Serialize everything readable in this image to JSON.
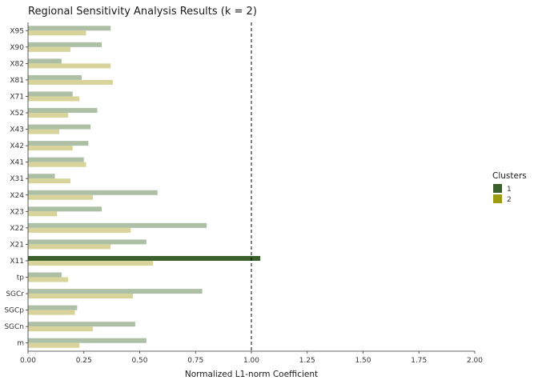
{
  "chart_data": {
    "type": "bar",
    "orientation": "horizontal",
    "title": "Regional Sensitivity Analysis Results (k = 2)",
    "xlabel": "Normalized L1-norm Coefficient",
    "ylabel": "",
    "xlim": [
      0,
      2
    ],
    "x_ticks": [
      "0.00",
      "0.25",
      "0.50",
      "0.75",
      "1.00",
      "1.25",
      "1.50",
      "1.75",
      "2.00"
    ],
    "reference_line": 1.0,
    "categories": [
      "X95",
      "X90",
      "X82",
      "X81",
      "X71",
      "X52",
      "X43",
      "X42",
      "X41",
      "X31",
      "X24",
      "X23",
      "X22",
      "X21",
      "X11",
      "tp",
      "SGCr",
      "SGCp",
      "SGCn",
      "m"
    ],
    "series": [
      {
        "name": "1",
        "color": "#3a5f2a",
        "faded_color": "#adc0a5",
        "values": [
          0.37,
          0.33,
          0.15,
          0.24,
          0.2,
          0.31,
          0.28,
          0.27,
          0.25,
          0.12,
          0.58,
          0.33,
          0.8,
          0.53,
          1.04,
          0.15,
          0.78,
          0.22,
          0.48,
          0.53
        ]
      },
      {
        "name": "2",
        "color": "#9c9a0f",
        "faded_color": "#d8d39a",
        "values": [
          0.26,
          0.19,
          0.37,
          0.38,
          0.23,
          0.18,
          0.14,
          0.2,
          0.26,
          0.19,
          0.29,
          0.13,
          0.46,
          0.37,
          0.56,
          0.18,
          0.47,
          0.21,
          0.29,
          0.23
        ]
      }
    ],
    "legend_title": "Clusters",
    "legend_position": "right",
    "grid": false
  }
}
